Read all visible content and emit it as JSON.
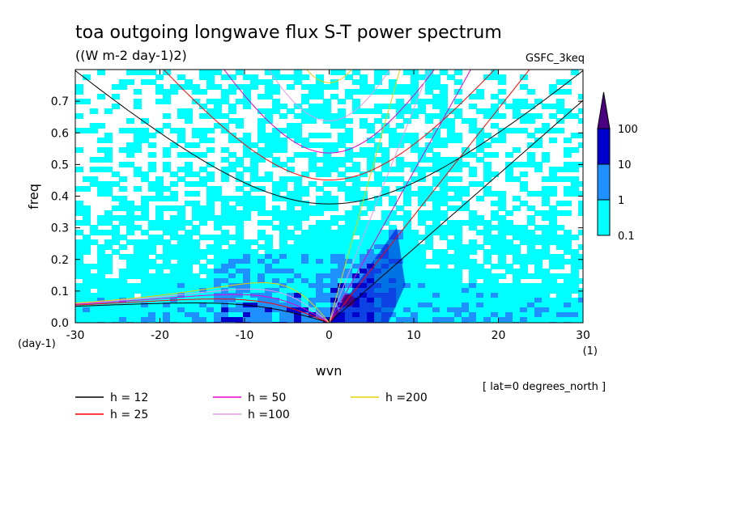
{
  "chart_data": {
    "type": "heatmap",
    "title": "toa outgoing longwave flux S-T power spectrum",
    "subtitle": "((W m-2 day-1)2)",
    "model_label": "GSFC_3keq",
    "xlabel": "wvn",
    "ylabel": "freq",
    "x_unit_label": "(1)",
    "y_unit_label": "(day-1)",
    "xlim": [
      -30,
      30
    ],
    "ylim": [
      0,
      0.8
    ],
    "x_ticks": [
      "-30",
      "-20",
      "-10",
      "0",
      "10",
      "20",
      "30"
    ],
    "y_ticks": [
      "0.0",
      "0.1",
      "0.2",
      "0.3",
      "0.4",
      "0.5",
      "0.6",
      "0.7"
    ],
    "annotation": "[ lat=0 degrees_north ]",
    "colorbar": {
      "levels": [
        "0.1",
        "1",
        "10",
        "100"
      ],
      "colors": [
        "#00ffff",
        "#1e90ff",
        "#0000cd",
        "#4b0082"
      ]
    },
    "background_colors": {
      "white": "#ffffff",
      "light": "#00ffff",
      "medium": "#1e90ff",
      "dark": "#0000cd",
      "peak": "#4b0082"
    },
    "regions": [
      {
        "name": "equatorial-kelvin-band",
        "level": "dark",
        "x": [
          0,
          8
        ],
        "y": [
          0.0,
          0.3
        ]
      },
      {
        "name": "low-frequency-ridge",
        "level": "medium",
        "x": [
          -14,
          8
        ],
        "y": [
          0.0,
          0.25
        ]
      },
      {
        "name": "kelvin-peak",
        "level": "peak",
        "x": [
          1.5,
          3.0
        ],
        "y": [
          0.05,
          0.09
        ]
      }
    ],
    "series": [
      {
        "name": "h = 12",
        "equivalent_depth_m": 12,
        "color": "#000000"
      },
      {
        "name": "h = 25",
        "equivalent_depth_m": 25,
        "color": "#ff0000"
      },
      {
        "name": "h = 50",
        "equivalent_depth_m": 50,
        "color": "#e600c8"
      },
      {
        "name": "h =100",
        "equivalent_depth_m": 100,
        "color": "#e699e6"
      },
      {
        "name": "h =200",
        "equivalent_depth_m": 200,
        "color": "#e6d200"
      }
    ],
    "dispersion_curves": [
      "kelvin",
      "equatorial-rossby",
      "inertia-gravity-n1"
    ]
  }
}
